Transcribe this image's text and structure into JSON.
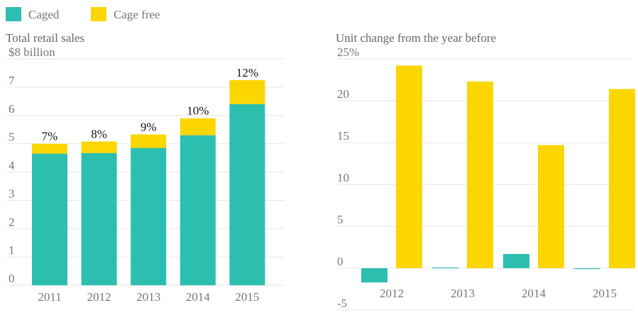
{
  "chart_data": [
    {
      "type": "bar",
      "stacked": true,
      "title": "Total retail sales",
      "categories": [
        "2011",
        "2012",
        "2013",
        "2014",
        "2015"
      ],
      "series": [
        {
          "name": "Caged",
          "color": "#2cbfb0",
          "values": [
            4.65,
            4.67,
            4.85,
            5.3,
            6.4
          ]
        },
        {
          "name": "Cage free",
          "color": "#fcd600",
          "values": [
            0.35,
            0.41,
            0.48,
            0.6,
            0.85
          ],
          "share_labels": [
            "7%",
            "8%",
            "9%",
            "10%",
            "12%"
          ]
        }
      ],
      "ylim": [
        0,
        8
      ],
      "yticks": [
        0,
        1,
        2,
        3,
        4,
        5,
        6,
        7,
        {
          "value": 8,
          "label": "$8 billion"
        }
      ],
      "grid": true
    },
    {
      "type": "bar",
      "stacked": false,
      "title": "Unit change from the year before",
      "categories": [
        "2012",
        "2013",
        "2014",
        "2015"
      ],
      "series": [
        {
          "name": "Caged",
          "color": "#2cbfb0",
          "values": [
            -1.7,
            0.1,
            1.7,
            -0.1
          ]
        },
        {
          "name": "Cage free",
          "color": "#fcd600",
          "values": [
            24.2,
            22.3,
            14.7,
            21.4
          ]
        }
      ],
      "ylim": [
        -5,
        25
      ],
      "yticks": [
        -5,
        0,
        5,
        10,
        15,
        20,
        {
          "value": 25,
          "label": "25%"
        }
      ],
      "grid": true
    }
  ]
}
